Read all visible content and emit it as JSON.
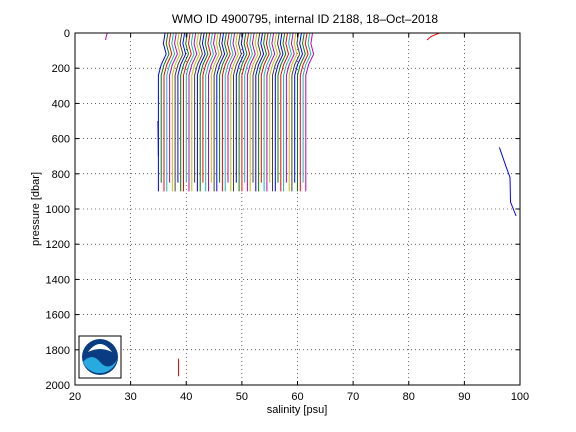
{
  "chart_data": {
    "type": "line",
    "title": "WMO ID 4900795, internal ID 2188, 18–Oct–2018",
    "xlabel": "salinity [psu]",
    "ylabel": "pressure [dbar]",
    "xlim": [
      20,
      100
    ],
    "ylim": [
      0,
      2000
    ],
    "y_reversed": true,
    "grid": true,
    "grid_style": "dotted",
    "xticks": [
      "20",
      "30",
      "40",
      "50",
      "60",
      "70",
      "80",
      "90",
      "100"
    ],
    "yticks": [
      "0",
      "200",
      "400",
      "600",
      "800",
      "1000",
      "1200",
      "1400",
      "1600",
      "1800",
      "2000"
    ],
    "logo": "NOAA",
    "profile_bundle": {
      "salinity_start": 35,
      "salinity_end": 61.5,
      "salinity_step": 0.5,
      "top_offset": 1.2,
      "bottom_pressures": [
        900,
        850,
        900
      ],
      "colors": [
        "#0000ff",
        "#008000",
        "#ff0000",
        "#00bfbf",
        "#bf00bf",
        "#bfbf00",
        "#404040"
      ]
    },
    "series": [
      {
        "color": "#bf00bf",
        "points": [
          [
            25.5,
            40
          ],
          [
            25.6,
            20
          ],
          [
            25.8,
            0
          ]
        ]
      },
      {
        "color": "#ff0000",
        "points": [
          [
            83.3,
            40
          ],
          [
            84,
            20
          ],
          [
            85.5,
            0
          ]
        ]
      },
      {
        "color": "#0000ff",
        "points": [
          [
            96.3,
            650
          ],
          [
            97.5,
            760
          ],
          [
            98.2,
            820
          ],
          [
            98.3,
            960
          ],
          [
            99.3,
            1040
          ]
        ]
      },
      {
        "color": "#ff0000",
        "points": [
          [
            38.6,
            1850
          ],
          [
            38.6,
            1950
          ]
        ]
      },
      {
        "color": "#0000ff",
        "points": [
          [
            34.9,
            500
          ],
          [
            35,
            700
          ]
        ]
      }
    ]
  }
}
